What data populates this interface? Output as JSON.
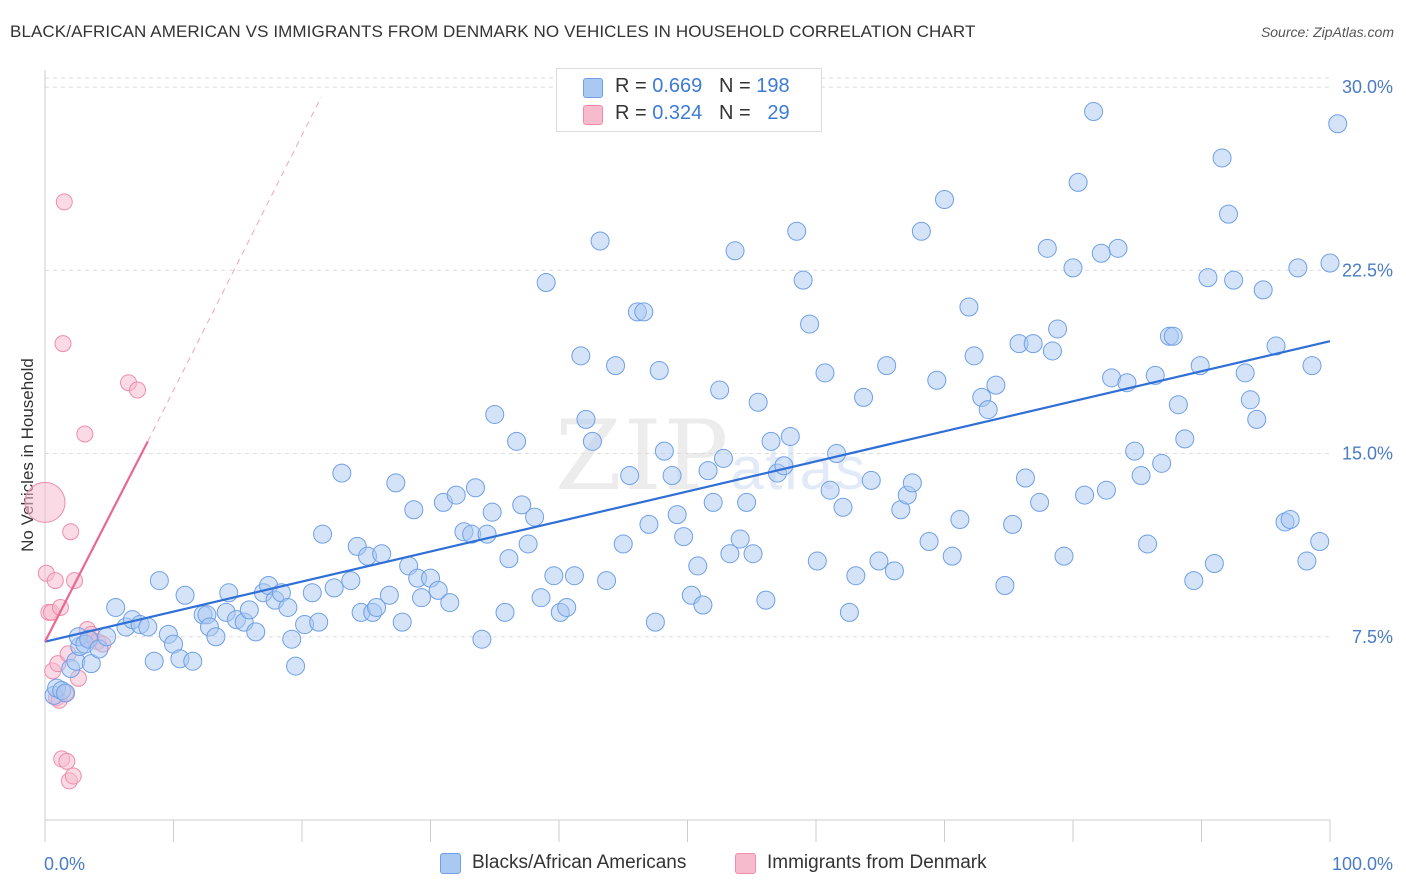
{
  "title": "BLACK/AFRICAN AMERICAN VS IMMIGRANTS FROM DENMARK NO VEHICLES IN HOUSEHOLD CORRELATION CHART",
  "source": "Source: ZipAtlas.com",
  "watermark": {
    "main": "ZIP",
    "sub": "atlas"
  },
  "stats": {
    "blue": {
      "r_label": "R =",
      "r": "0.669",
      "n_label": "N =",
      "n": "198"
    },
    "pink": {
      "r_label": "R =",
      "r": "0.324",
      "n_label": "N =",
      "n": "29"
    }
  },
  "legend": {
    "blue": "Blacks/African Americans",
    "pink": "Immigrants from Denmark"
  },
  "colors": {
    "blue": "#6fa0e6",
    "blue_fill": "#a9c8f2",
    "blue_line": "#2f6fd6",
    "pink": "#f08cac",
    "pink_fill": "#f6bccd",
    "pink_line": "#e86891",
    "grid": "#dddddd",
    "axis_text": "#4a7cc4"
  },
  "chart_data": {
    "type": "scatter",
    "title": "BLACK/AFRICAN AMERICAN VS IMMIGRANTS FROM DENMARK NO VEHICLES IN HOUSEHOLD CORRELATION CHART",
    "xlabel": "",
    "ylabel": "No Vehicles in Household",
    "xlim": [
      0,
      100
    ],
    "ylim": [
      0,
      30.7
    ],
    "x_tick_labels": [
      "0.0%",
      "100.0%"
    ],
    "y_ticks": [
      7.5,
      15.0,
      22.5,
      30.0
    ],
    "y_tick_labels": [
      "7.5%",
      "15.0%",
      "22.5%",
      "30.0%"
    ],
    "grid": true,
    "legend_position": "bottom",
    "series": [
      {
        "name": "Blacks/African Americans",
        "color": "#6fa0e6",
        "trend": [
          [
            0,
            7.3
          ],
          [
            100,
            19.6
          ]
        ],
        "points": [
          [
            0.7,
            5.1
          ],
          [
            0.9,
            5.4
          ],
          [
            1.3,
            5.3
          ],
          [
            1.6,
            5.2
          ],
          [
            2.0,
            6.2
          ],
          [
            2.4,
            6.5
          ],
          [
            2.7,
            7.1
          ],
          [
            2.6,
            7.5
          ],
          [
            3.1,
            7.2
          ],
          [
            3.4,
            7.4
          ],
          [
            3.6,
            6.4
          ],
          [
            4.2,
            7.0
          ],
          [
            4.8,
            7.5
          ],
          [
            5.5,
            8.7
          ],
          [
            6.3,
            7.9
          ],
          [
            6.8,
            8.2
          ],
          [
            7.4,
            8.0
          ],
          [
            8.0,
            7.9
          ],
          [
            8.5,
            6.5
          ],
          [
            8.9,
            9.8
          ],
          [
            9.6,
            7.6
          ],
          [
            10.0,
            7.2
          ],
          [
            10.5,
            6.6
          ],
          [
            10.9,
            9.2
          ],
          [
            11.5,
            6.5
          ],
          [
            12.3,
            8.4
          ],
          [
            12.6,
            8.4
          ],
          [
            12.8,
            7.9
          ],
          [
            13.3,
            7.5
          ],
          [
            14.1,
            8.5
          ],
          [
            14.3,
            9.3
          ],
          [
            14.9,
            8.2
          ],
          [
            15.5,
            8.1
          ],
          [
            15.9,
            8.6
          ],
          [
            16.4,
            7.7
          ],
          [
            17.0,
            9.3
          ],
          [
            17.4,
            9.6
          ],
          [
            17.9,
            9.0
          ],
          [
            18.4,
            9.3
          ],
          [
            18.9,
            8.7
          ],
          [
            19.2,
            7.4
          ],
          [
            19.5,
            6.3
          ],
          [
            20.2,
            8.0
          ],
          [
            20.8,
            9.3
          ],
          [
            21.3,
            8.1
          ],
          [
            21.6,
            11.7
          ],
          [
            22.5,
            9.5
          ],
          [
            23.1,
            14.2
          ],
          [
            23.8,
            9.8
          ],
          [
            24.3,
            11.2
          ],
          [
            24.6,
            8.5
          ],
          [
            25.1,
            10.8
          ],
          [
            25.5,
            8.5
          ],
          [
            25.8,
            8.7
          ],
          [
            26.2,
            10.9
          ],
          [
            26.8,
            9.2
          ],
          [
            27.3,
            13.8
          ],
          [
            27.8,
            8.1
          ],
          [
            28.3,
            10.4
          ],
          [
            28.7,
            12.7
          ],
          [
            29.0,
            9.9
          ],
          [
            29.3,
            9.1
          ],
          [
            30.0,
            9.9
          ],
          [
            30.6,
            9.4
          ],
          [
            31.0,
            13.0
          ],
          [
            31.5,
            8.9
          ],
          [
            32.0,
            13.3
          ],
          [
            32.6,
            11.8
          ],
          [
            33.2,
            11.7
          ],
          [
            33.5,
            13.6
          ],
          [
            34.0,
            7.4
          ],
          [
            34.4,
            11.7
          ],
          [
            34.8,
            12.6
          ],
          [
            35.0,
            16.6
          ],
          [
            35.8,
            8.5
          ],
          [
            36.1,
            10.7
          ],
          [
            36.7,
            15.5
          ],
          [
            37.1,
            12.9
          ],
          [
            37.6,
            11.3
          ],
          [
            38.1,
            12.4
          ],
          [
            38.6,
            9.1
          ],
          [
            39.0,
            22.0
          ],
          [
            39.6,
            10.0
          ],
          [
            40.1,
            8.5
          ],
          [
            40.6,
            8.7
          ],
          [
            41.2,
            10.0
          ],
          [
            41.7,
            19.0
          ],
          [
            42.1,
            16.4
          ],
          [
            42.6,
            15.5
          ],
          [
            43.2,
            23.7
          ],
          [
            43.7,
            9.8
          ],
          [
            44.4,
            18.6
          ],
          [
            45.0,
            11.3
          ],
          [
            45.5,
            14.1
          ],
          [
            46.1,
            20.8
          ],
          [
            46.6,
            20.8
          ],
          [
            47.0,
            12.1
          ],
          [
            47.5,
            8.1
          ],
          [
            47.8,
            18.4
          ],
          [
            48.2,
            15.1
          ],
          [
            48.8,
            14.1
          ],
          [
            49.2,
            12.5
          ],
          [
            49.7,
            11.6
          ],
          [
            50.3,
            9.2
          ],
          [
            50.8,
            10.4
          ],
          [
            51.2,
            8.8
          ],
          [
            51.6,
            14.3
          ],
          [
            52.0,
            13.0
          ],
          [
            52.5,
            17.6
          ],
          [
            52.8,
            14.8
          ],
          [
            53.3,
            10.9
          ],
          [
            53.7,
            23.3
          ],
          [
            54.1,
            11.5
          ],
          [
            54.6,
            13.0
          ],
          [
            55.1,
            10.9
          ],
          [
            55.5,
            17.1
          ],
          [
            56.1,
            9.0
          ],
          [
            56.5,
            15.5
          ],
          [
            57.0,
            14.2
          ],
          [
            57.5,
            14.5
          ],
          [
            58.0,
            15.7
          ],
          [
            58.5,
            24.1
          ],
          [
            59.0,
            22.1
          ],
          [
            59.5,
            20.3
          ],
          [
            60.1,
            10.6
          ],
          [
            60.7,
            18.3
          ],
          [
            61.1,
            13.5
          ],
          [
            61.6,
            15.0
          ],
          [
            62.1,
            12.8
          ],
          [
            62.6,
            8.5
          ],
          [
            63.1,
            10.0
          ],
          [
            63.7,
            17.3
          ],
          [
            64.3,
            13.9
          ],
          [
            64.9,
            10.6
          ],
          [
            65.5,
            18.6
          ],
          [
            66.1,
            10.2
          ],
          [
            66.6,
            12.7
          ],
          [
            67.1,
            13.3
          ],
          [
            67.5,
            13.8
          ],
          [
            68.2,
            24.1
          ],
          [
            68.8,
            11.4
          ],
          [
            69.4,
            18.0
          ],
          [
            70.0,
            25.4
          ],
          [
            70.6,
            10.8
          ],
          [
            71.2,
            12.3
          ],
          [
            71.9,
            21.0
          ],
          [
            72.3,
            19.0
          ],
          [
            72.9,
            17.3
          ],
          [
            73.4,
            16.8
          ],
          [
            74.0,
            17.8
          ],
          [
            74.7,
            9.6
          ],
          [
            75.3,
            12.1
          ],
          [
            75.8,
            19.5
          ],
          [
            76.3,
            14.0
          ],
          [
            76.9,
            19.5
          ],
          [
            77.4,
            13.0
          ],
          [
            78.0,
            23.4
          ],
          [
            78.4,
            19.2
          ],
          [
            78.8,
            20.1
          ],
          [
            79.3,
            10.8
          ],
          [
            80.0,
            22.6
          ],
          [
            80.4,
            26.1
          ],
          [
            80.9,
            13.3
          ],
          [
            81.6,
            29.0
          ],
          [
            82.2,
            23.2
          ],
          [
            82.6,
            13.5
          ],
          [
            83.0,
            18.1
          ],
          [
            83.5,
            23.4
          ],
          [
            84.2,
            17.9
          ],
          [
            84.8,
            15.1
          ],
          [
            85.3,
            14.1
          ],
          [
            85.8,
            11.3
          ],
          [
            86.4,
            18.2
          ],
          [
            86.9,
            14.6
          ],
          [
            87.5,
            19.8
          ],
          [
            87.8,
            19.8
          ],
          [
            88.2,
            17.0
          ],
          [
            88.7,
            15.6
          ],
          [
            89.4,
            9.8
          ],
          [
            89.9,
            18.6
          ],
          [
            90.5,
            22.2
          ],
          [
            91.0,
            10.5
          ],
          [
            91.6,
            27.1
          ],
          [
            92.1,
            24.8
          ],
          [
            92.5,
            22.1
          ],
          [
            93.4,
            18.3
          ],
          [
            93.8,
            17.2
          ],
          [
            94.3,
            16.4
          ],
          [
            94.8,
            21.7
          ],
          [
            95.8,
            19.4
          ],
          [
            96.5,
            12.2
          ],
          [
            96.9,
            12.3
          ],
          [
            97.5,
            22.6
          ],
          [
            98.2,
            10.6
          ],
          [
            98.6,
            18.6
          ],
          [
            99.2,
            11.4
          ],
          [
            100.0,
            22.8
          ],
          [
            100.6,
            28.5
          ]
        ]
      },
      {
        "name": "Immigrants from Denmark",
        "color": "#f08cac",
        "trend": [
          [
            0,
            7.3
          ],
          [
            8,
            15.5
          ]
        ],
        "trend_extension": [
          [
            8,
            15.5
          ],
          [
            21.5,
            29.6
          ]
        ],
        "points": [
          [
            0.0,
            13.0
          ],
          [
            0.1,
            10.1
          ],
          [
            0.3,
            8.5
          ],
          [
            0.5,
            8.5
          ],
          [
            0.6,
            6.1
          ],
          [
            0.8,
            9.8
          ],
          [
            0.9,
            5.0
          ],
          [
            1.0,
            6.4
          ],
          [
            1.1,
            4.9
          ],
          [
            1.2,
            8.7
          ],
          [
            1.3,
            2.5
          ],
          [
            1.4,
            19.5
          ],
          [
            1.5,
            25.3
          ],
          [
            1.6,
            5.2
          ],
          [
            1.7,
            2.4
          ],
          [
            1.8,
            6.8
          ],
          [
            1.9,
            1.6
          ],
          [
            2.0,
            11.8
          ],
          [
            2.2,
            1.8
          ],
          [
            2.3,
            9.8
          ],
          [
            2.6,
            5.8
          ],
          [
            3.1,
            15.8
          ],
          [
            3.3,
            7.8
          ],
          [
            3.4,
            7.4
          ],
          [
            3.6,
            7.6
          ],
          [
            4.1,
            7.3
          ],
          [
            4.5,
            7.2
          ],
          [
            6.5,
            17.9
          ],
          [
            7.2,
            17.6
          ]
        ]
      }
    ]
  }
}
